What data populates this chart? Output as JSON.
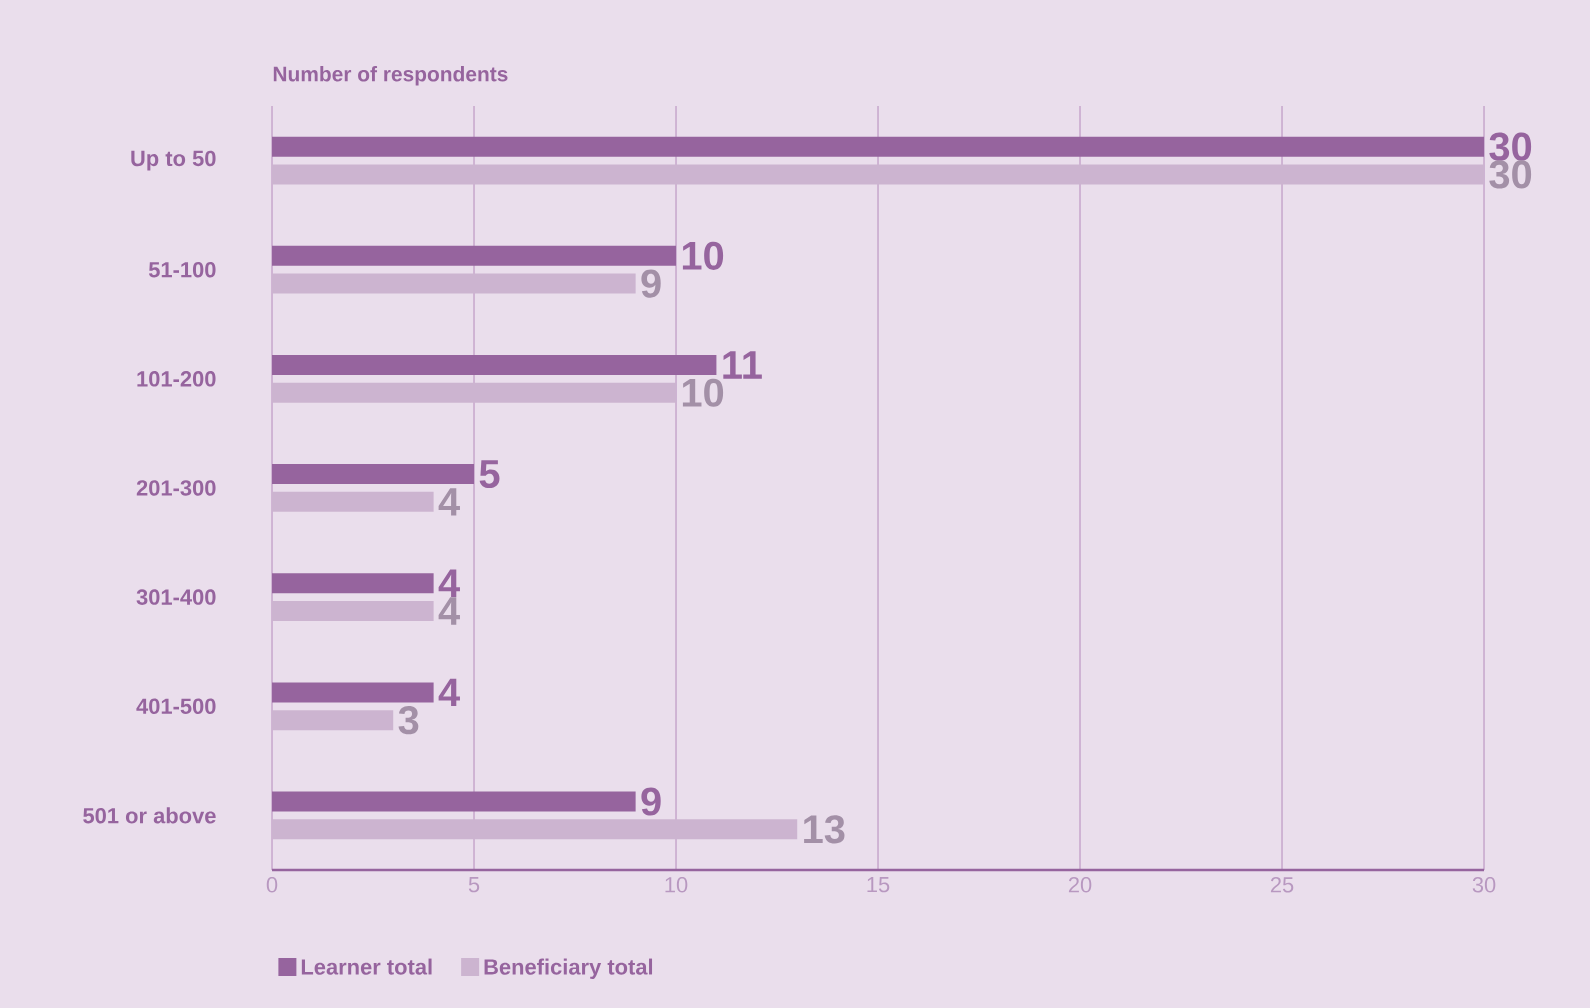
{
  "chart_data": {
    "type": "bar",
    "orientation": "horizontal",
    "xlabel": "Number of respondents",
    "categories": [
      "Up to 50",
      "51-100",
      "101-200",
      "201-300",
      "301-400",
      "401-500",
      "501 or above"
    ],
    "series": [
      {
        "name": "Learner total",
        "color": "#96649e",
        "values": [
          30,
          10,
          11,
          5,
          4,
          4,
          9
        ]
      },
      {
        "name": "Beneficiary total",
        "color": "#ccb4d0",
        "values": [
          30,
          9,
          10,
          4,
          4,
          3,
          13
        ]
      }
    ],
    "xlim": [
      0,
      30
    ],
    "xticks": [
      0,
      5,
      10,
      15,
      20,
      25,
      30
    ],
    "grid": "x",
    "legend": "bottom",
    "data_labels": true
  }
}
